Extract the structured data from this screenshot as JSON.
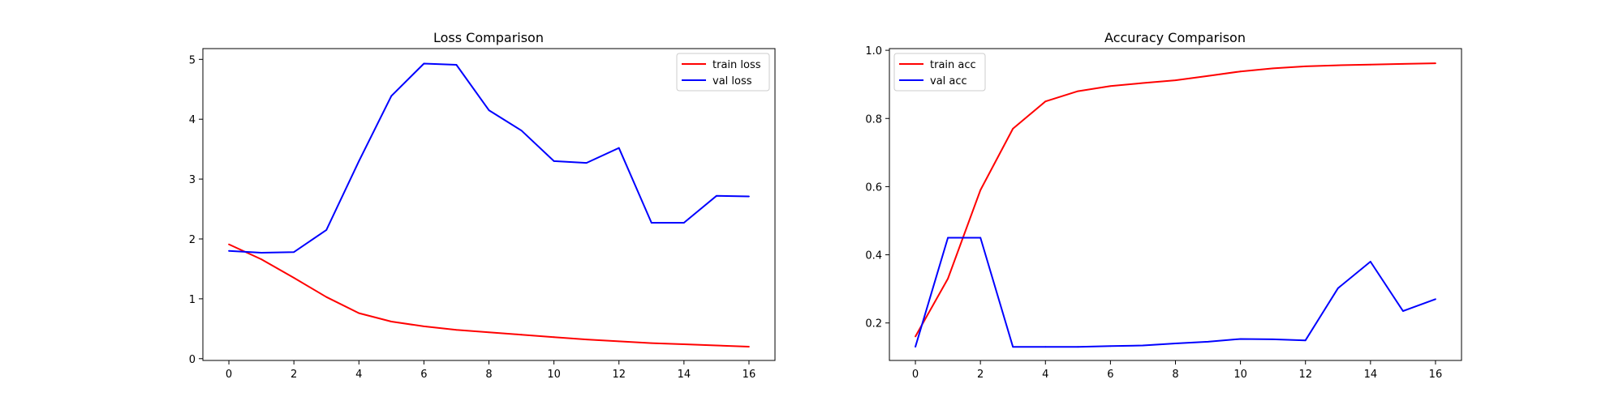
{
  "chart_data": [
    {
      "type": "line",
      "title": "Loss Comparison",
      "xlabel": "",
      "ylabel": "",
      "x": [
        0,
        1,
        2,
        3,
        4,
        5,
        6,
        7,
        8,
        9,
        10,
        11,
        12,
        13,
        14,
        15,
        16
      ],
      "xlim": [
        -0.8,
        16.8
      ],
      "ylim": [
        -0.03,
        5.18
      ],
      "xticks": [
        0,
        2,
        4,
        6,
        8,
        10,
        12,
        14,
        16
      ],
      "yticks": [
        0,
        1,
        2,
        3,
        4,
        5
      ],
      "ytick_format": "int",
      "grid": false,
      "legend_position": "upper-right",
      "series": [
        {
          "name": "train loss",
          "color": "#ff0000",
          "values": [
            1.91,
            1.66,
            1.35,
            1.03,
            0.76,
            0.62,
            0.54,
            0.48,
            0.44,
            0.4,
            0.36,
            0.32,
            0.29,
            0.26,
            0.24,
            0.22,
            0.2
          ]
        },
        {
          "name": "val loss",
          "color": "#0000ff",
          "values": [
            1.8,
            1.77,
            1.78,
            2.15,
            3.3,
            4.39,
            4.93,
            4.91,
            4.15,
            3.81,
            3.3,
            3.27,
            3.52,
            2.27,
            2.27,
            2.72,
            2.71
          ]
        }
      ]
    },
    {
      "type": "line",
      "title": "Accuracy Comparison",
      "xlabel": "",
      "ylabel": "",
      "x": [
        0,
        1,
        2,
        3,
        4,
        5,
        6,
        7,
        8,
        9,
        10,
        11,
        12,
        13,
        14,
        15,
        16
      ],
      "xlim": [
        -0.8,
        16.8
      ],
      "ylim": [
        0.09,
        1.005
      ],
      "xticks": [
        0,
        2,
        4,
        6,
        8,
        10,
        12,
        14,
        16
      ],
      "yticks": [
        0.2,
        0.4,
        0.6,
        0.8,
        1.0
      ],
      "ytick_format": "1dp",
      "grid": false,
      "legend_position": "upper-left",
      "series": [
        {
          "name": "train acc",
          "color": "#ff0000",
          "values": [
            0.16,
            0.33,
            0.59,
            0.77,
            0.85,
            0.88,
            0.895,
            0.904,
            0.912,
            0.925,
            0.938,
            0.947,
            0.953,
            0.956,
            0.958,
            0.96,
            0.962
          ]
        },
        {
          "name": "val acc",
          "color": "#0000ff",
          "values": [
            0.13,
            0.45,
            0.45,
            0.13,
            0.13,
            0.13,
            0.132,
            0.134,
            0.14,
            0.145,
            0.153,
            0.152,
            0.149,
            0.302,
            0.38,
            0.235,
            0.27
          ]
        }
      ]
    }
  ]
}
